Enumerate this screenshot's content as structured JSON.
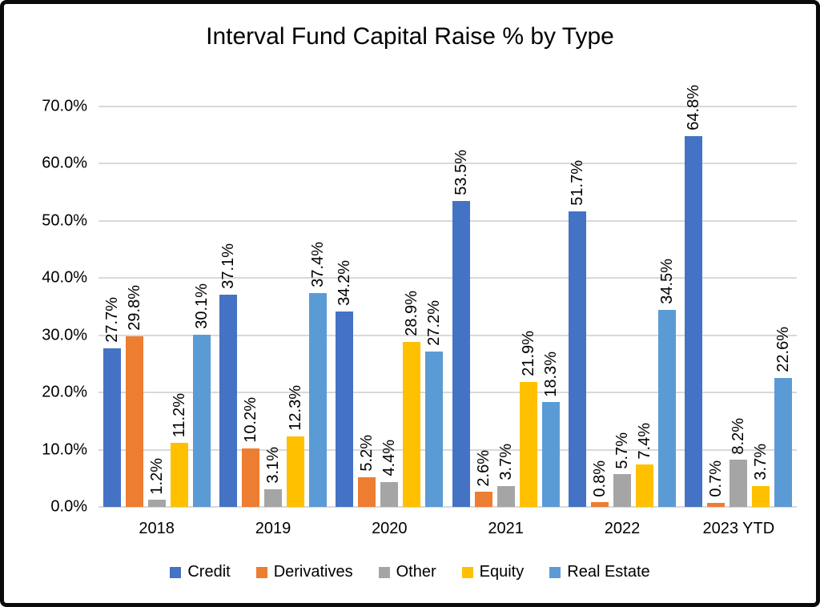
{
  "chart_data": {
    "type": "bar",
    "title": "Interval Fund Capital Raise % by Type",
    "xlabel": "",
    "ylabel": "",
    "ylim": [
      0,
      70
    ],
    "yticks": [
      "0.0%",
      "10.0%",
      "20.0%",
      "30.0%",
      "40.0%",
      "50.0%",
      "60.0%",
      "70.0%"
    ],
    "grid": "horizontal",
    "grid_color": "#d9d9d9",
    "legend_position": "bottom",
    "categories": [
      "2018",
      "2019",
      "2020",
      "2021",
      "2022",
      "2023 YTD"
    ],
    "series": [
      {
        "name": "Credit",
        "color": "#4472C4",
        "values": [
          27.7,
          37.1,
          34.2,
          53.5,
          51.7,
          64.8
        ],
        "labels": [
          "27.7%",
          "37.1%",
          "34.2%",
          "53.5%",
          "51.7%",
          "64.8%"
        ]
      },
      {
        "name": "Derivatives",
        "color": "#ED7D31",
        "values": [
          29.8,
          10.2,
          5.2,
          2.6,
          0.8,
          0.7
        ],
        "labels": [
          "29.8%",
          "10.2%",
          "5.2%",
          "2.6%",
          "0.8%",
          "0.7%"
        ]
      },
      {
        "name": "Other",
        "color": "#A5A5A5",
        "values": [
          1.2,
          3.1,
          4.4,
          3.7,
          5.7,
          8.2
        ],
        "labels": [
          "1.2%",
          "3.1%",
          "4.4%",
          "3.7%",
          "5.7%",
          "8.2%"
        ]
      },
      {
        "name": "Equity",
        "color": "#FFC000",
        "values": [
          11.2,
          12.3,
          28.9,
          21.9,
          7.4,
          3.7
        ],
        "labels": [
          "11.2%",
          "12.3%",
          "28.9%",
          "21.9%",
          "7.4%",
          "3.7%"
        ]
      },
      {
        "name": "Real Estate",
        "color": "#5B9BD5",
        "values": [
          30.1,
          37.4,
          27.2,
          18.3,
          34.5,
          22.6
        ],
        "labels": [
          "30.1%",
          "37.4%",
          "27.2%",
          "18.3%",
          "34.5%",
          "22.6%"
        ]
      }
    ]
  }
}
